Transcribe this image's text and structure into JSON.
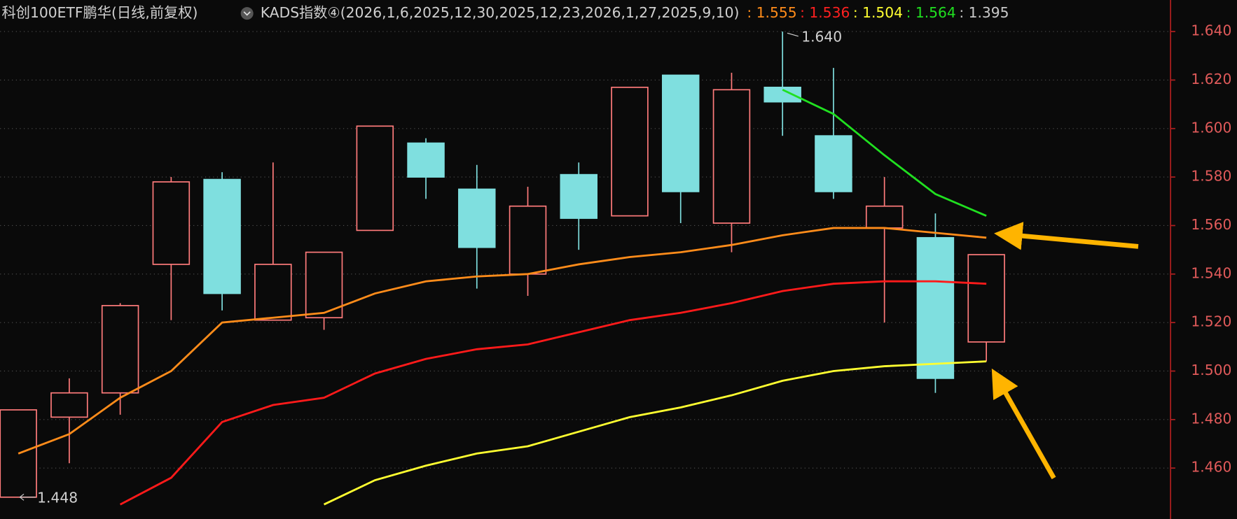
{
  "chart_data": {
    "type": "candlestick",
    "title": "科创100ETF鹏华(日线,前复权)",
    "indicator": "KADS指数④(2026,1,6,2025,12,30,2025,12,23,2026,1,27,2025,9,10)",
    "indicator_readouts": [
      {
        "text": ": 1.555",
        "color": "#ff8c1a"
      },
      {
        "text": ": 1.536",
        "color": "#ff2020"
      },
      {
        "text": ": 1.504",
        "color": "#ffff30"
      },
      {
        "text": ": 1.564",
        "color": "#20e020"
      },
      {
        "text": ": 1.395",
        "color": "#c8c8c8"
      }
    ],
    "open": [
      1.448,
      1.481,
      1.491,
      1.544,
      1.579,
      1.521,
      1.522,
      1.558,
      1.594,
      1.575,
      1.54,
      1.581,
      1.564,
      1.622,
      1.561,
      1.617,
      1.597,
      1.559,
      1.555,
      1.512
    ],
    "high": [
      1.484,
      1.497,
      1.528,
      1.58,
      1.582,
      1.586,
      1.549,
      1.601,
      1.596,
      1.585,
      1.576,
      1.586,
      1.617,
      1.622,
      1.623,
      1.64,
      1.625,
      1.58,
      1.565,
      1.548
    ],
    "low": [
      1.448,
      1.462,
      1.482,
      1.521,
      1.525,
      1.521,
      1.517,
      1.558,
      1.571,
      1.534,
      1.531,
      1.55,
      1.564,
      1.561,
      1.549,
      1.597,
      1.571,
      1.52,
      1.491,
      1.504
    ],
    "close": [
      1.484,
      1.491,
      1.527,
      1.578,
      1.532,
      1.544,
      1.549,
      1.601,
      1.58,
      1.551,
      1.568,
      1.563,
      1.617,
      1.574,
      1.616,
      1.611,
      1.574,
      1.568,
      1.497,
      1.548
    ],
    "up_color": "#ff7b7b",
    "down_color": "#7fdfdf",
    "series": [
      {
        "color": "#ff8c1a",
        "values": [
          1.466,
          1.474,
          1.489,
          1.5,
          1.52,
          1.522,
          1.524,
          1.532,
          1.537,
          1.539,
          1.54,
          1.544,
          1.547,
          1.549,
          1.552,
          1.556,
          1.559,
          1.559,
          1.557,
          1.555
        ]
      },
      {
        "color": "#ff1a1a",
        "values": [
          null,
          null,
          1.445,
          1.456,
          1.479,
          1.486,
          1.489,
          1.499,
          1.505,
          1.509,
          1.511,
          1.516,
          1.521,
          1.524,
          1.528,
          1.533,
          1.536,
          1.537,
          1.537,
          1.536
        ]
      },
      {
        "color": "#ffff30",
        "values": [
          null,
          null,
          null,
          null,
          null,
          null,
          1.445,
          1.455,
          1.461,
          1.466,
          1.469,
          1.475,
          1.481,
          1.485,
          1.49,
          1.496,
          1.5,
          1.502,
          1.503,
          1.504
        ]
      },
      {
        "color": "#20e020",
        "values": [
          null,
          null,
          null,
          null,
          null,
          null,
          null,
          null,
          null,
          null,
          null,
          null,
          null,
          null,
          null,
          1.616,
          1.606,
          1.589,
          1.573,
          1.564
        ]
      }
    ],
    "high_label": "1.640",
    "low_label": "1.448",
    "ylim": [
      1.439,
      1.653
    ],
    "yticks": [
      {
        "value": 1.46,
        "label": "1.460"
      },
      {
        "value": 1.48,
        "label": "1.480"
      },
      {
        "value": 1.5,
        "label": "1.500"
      },
      {
        "value": 1.52,
        "label": "1.520"
      },
      {
        "value": 1.54,
        "label": "1.540"
      },
      {
        "value": 1.56,
        "label": "1.560"
      },
      {
        "value": 1.58,
        "label": "1.580"
      },
      {
        "value": 1.6,
        "label": "1.600"
      },
      {
        "value": 1.62,
        "label": "1.620"
      },
      {
        "value": 1.64,
        "label": "1.640"
      }
    ],
    "grid": true
  }
}
